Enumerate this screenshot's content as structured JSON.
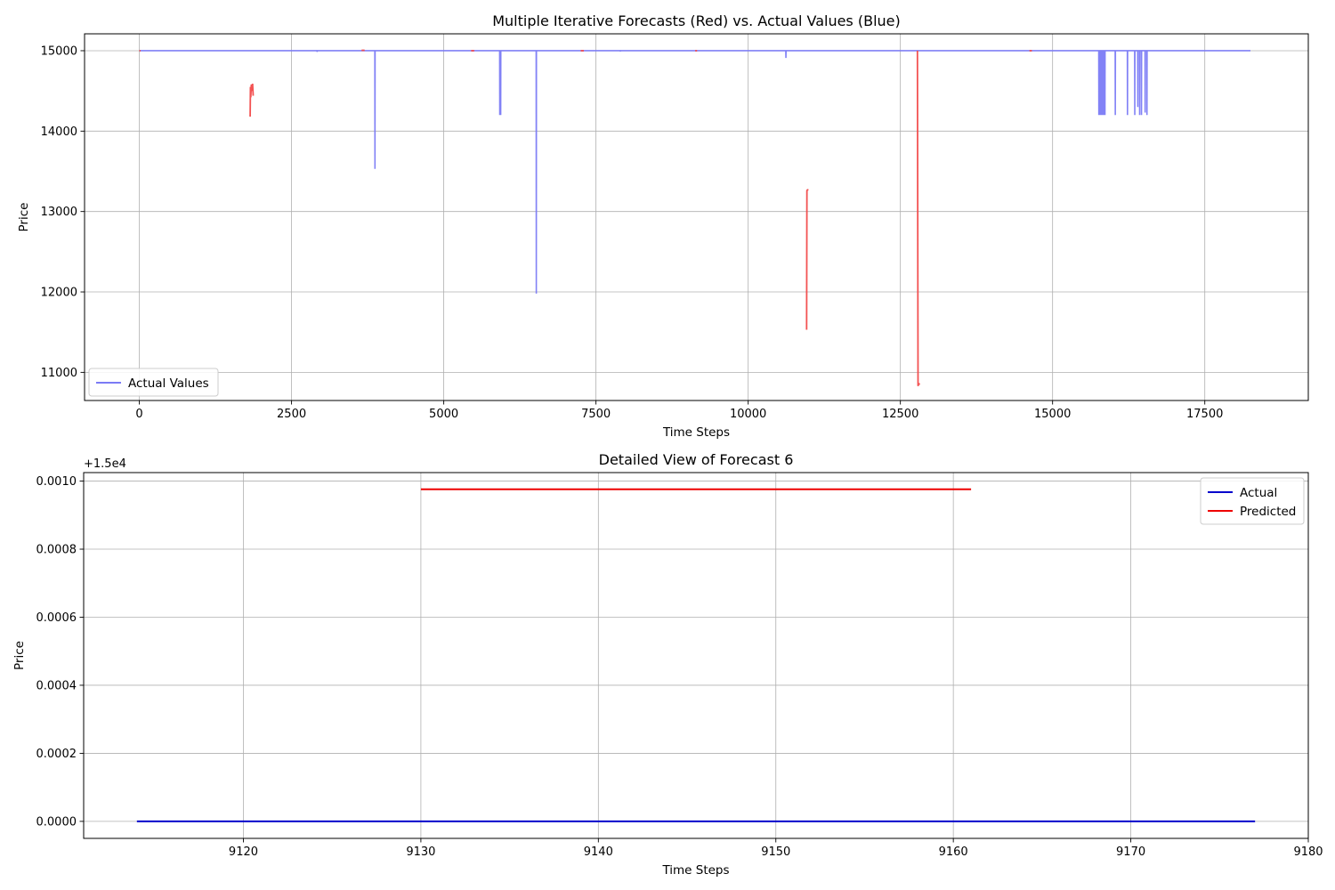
{
  "chart_data": [
    {
      "type": "line",
      "title": "Multiple Iterative Forecasts (Red) vs. Actual Values (Blue)",
      "xlabel": "Time Steps",
      "ylabel": "Price",
      "xlim": [
        -900,
        19200
      ],
      "ylim": [
        10650,
        15210
      ],
      "xticks": [
        0,
        2500,
        5000,
        7500,
        10000,
        12500,
        15000,
        17500
      ],
      "xtick_labels": [
        "0",
        "2500",
        "5000",
        "7500",
        "10000",
        "12500",
        "15000",
        "17500"
      ],
      "yticks": [
        11000,
        12000,
        13000,
        14000,
        15000
      ],
      "ytick_labels": [
        "11000",
        "12000",
        "13000",
        "14000",
        "15000"
      ],
      "grid": true,
      "legend": {
        "position": "lower-left",
        "entries": [
          {
            "label": "Actual Values",
            "color": "#7b7bf5"
          }
        ]
      },
      "series": [
        {
          "name": "Actual Values",
          "color": "#7b7bf5",
          "baseline": 15000,
          "x_range": [
            0,
            18250
          ],
          "dips": [
            {
              "x": 2920,
              "y": 14985
            },
            {
              "x": 3870,
              "y": 13530
            },
            {
              "x": 5920,
              "y": 14200
            },
            {
              "x": 5935,
              "y": 14200
            },
            {
              "x": 6520,
              "y": 11980
            },
            {
              "x": 7900,
              "y": 14990
            },
            {
              "x": 10620,
              "y": 14910
            },
            {
              "x": 15760,
              "y": 14200
            },
            {
              "x": 15780,
              "y": 14200
            },
            {
              "x": 15800,
              "y": 14200
            },
            {
              "x": 15820,
              "y": 14200
            },
            {
              "x": 15840,
              "y": 14200
            },
            {
              "x": 15860,
              "y": 14200
            },
            {
              "x": 16030,
              "y": 14200
            },
            {
              "x": 16230,
              "y": 14200
            },
            {
              "x": 16350,
              "y": 14200
            },
            {
              "x": 16400,
              "y": 14300
            },
            {
              "x": 16430,
              "y": 14200
            },
            {
              "x": 16460,
              "y": 14200
            },
            {
              "x": 16520,
              "y": 14230
            },
            {
              "x": 16550,
              "y": 14200
            }
          ]
        },
        {
          "name": "Forecasts",
          "color": "#f24a4a",
          "segments": [
            {
              "x": [
                0,
                20
              ],
              "y": [
                15000,
                15000
              ]
            },
            {
              "x": [
                1820,
                1825,
                1830,
                1840,
                1850,
                1860,
                1870
              ],
              "y": [
                14180,
                14550,
                14420,
                14580,
                14500,
                14590,
                14440
              ]
            },
            {
              "x": [
                3650,
                3700
              ],
              "y": [
                15005,
                15005
              ]
            },
            {
              "x": [
                5450,
                5500
              ],
              "y": [
                15000,
                15000
              ]
            },
            {
              "x": [
                7250,
                7300
              ],
              "y": [
                15000,
                15000
              ]
            },
            {
              "x": [
                9130,
                9161
              ],
              "y": [
                15000,
                15000
              ]
            },
            {
              "x": [
                10960,
                10965,
                10975,
                10990
              ],
              "y": [
                11530,
                13260,
                13270,
                13270
              ]
            },
            {
              "x": [
                12780,
                12790,
                12800,
                12820
              ],
              "y": [
                15000,
                10830,
                10860,
                10850
              ]
            },
            {
              "x": [
                14620,
                14660
              ],
              "y": [
                15000,
                15000
              ]
            }
          ]
        }
      ]
    },
    {
      "type": "line",
      "title": "Detailed View of Forecast 6",
      "xlabel": "Time Steps",
      "ylabel": "Price",
      "offset_text": "+1.5e4",
      "xlim": [
        9111,
        9180
      ],
      "ylim": [
        -5e-05,
        0.001025
      ],
      "xticks": [
        9120,
        9130,
        9140,
        9150,
        9160,
        9170,
        9180
      ],
      "xtick_labels": [
        "9120",
        "9130",
        "9140",
        "9150",
        "9160",
        "9170",
        "9180"
      ],
      "yticks": [
        0,
        0.0002,
        0.0004,
        0.0006,
        0.0008,
        0.001
      ],
      "ytick_labels": [
        "0.0000",
        "0.0002",
        "0.0004",
        "0.0006",
        "0.0008",
        "0.0010"
      ],
      "grid": true,
      "legend": {
        "position": "top-right",
        "entries": [
          {
            "label": "Actual",
            "color": "#0000cc"
          },
          {
            "label": "Predicted",
            "color": "#ee0000"
          }
        ]
      },
      "series": [
        {
          "name": "Actual",
          "color": "#0000cc",
          "x": [
            9114,
            9177
          ],
          "y": [
            0,
            0
          ]
        },
        {
          "name": "Predicted",
          "color": "#ee0000",
          "x": [
            9130,
            9161
          ],
          "y": [
            0.000976,
            0.000976
          ]
        }
      ]
    }
  ]
}
